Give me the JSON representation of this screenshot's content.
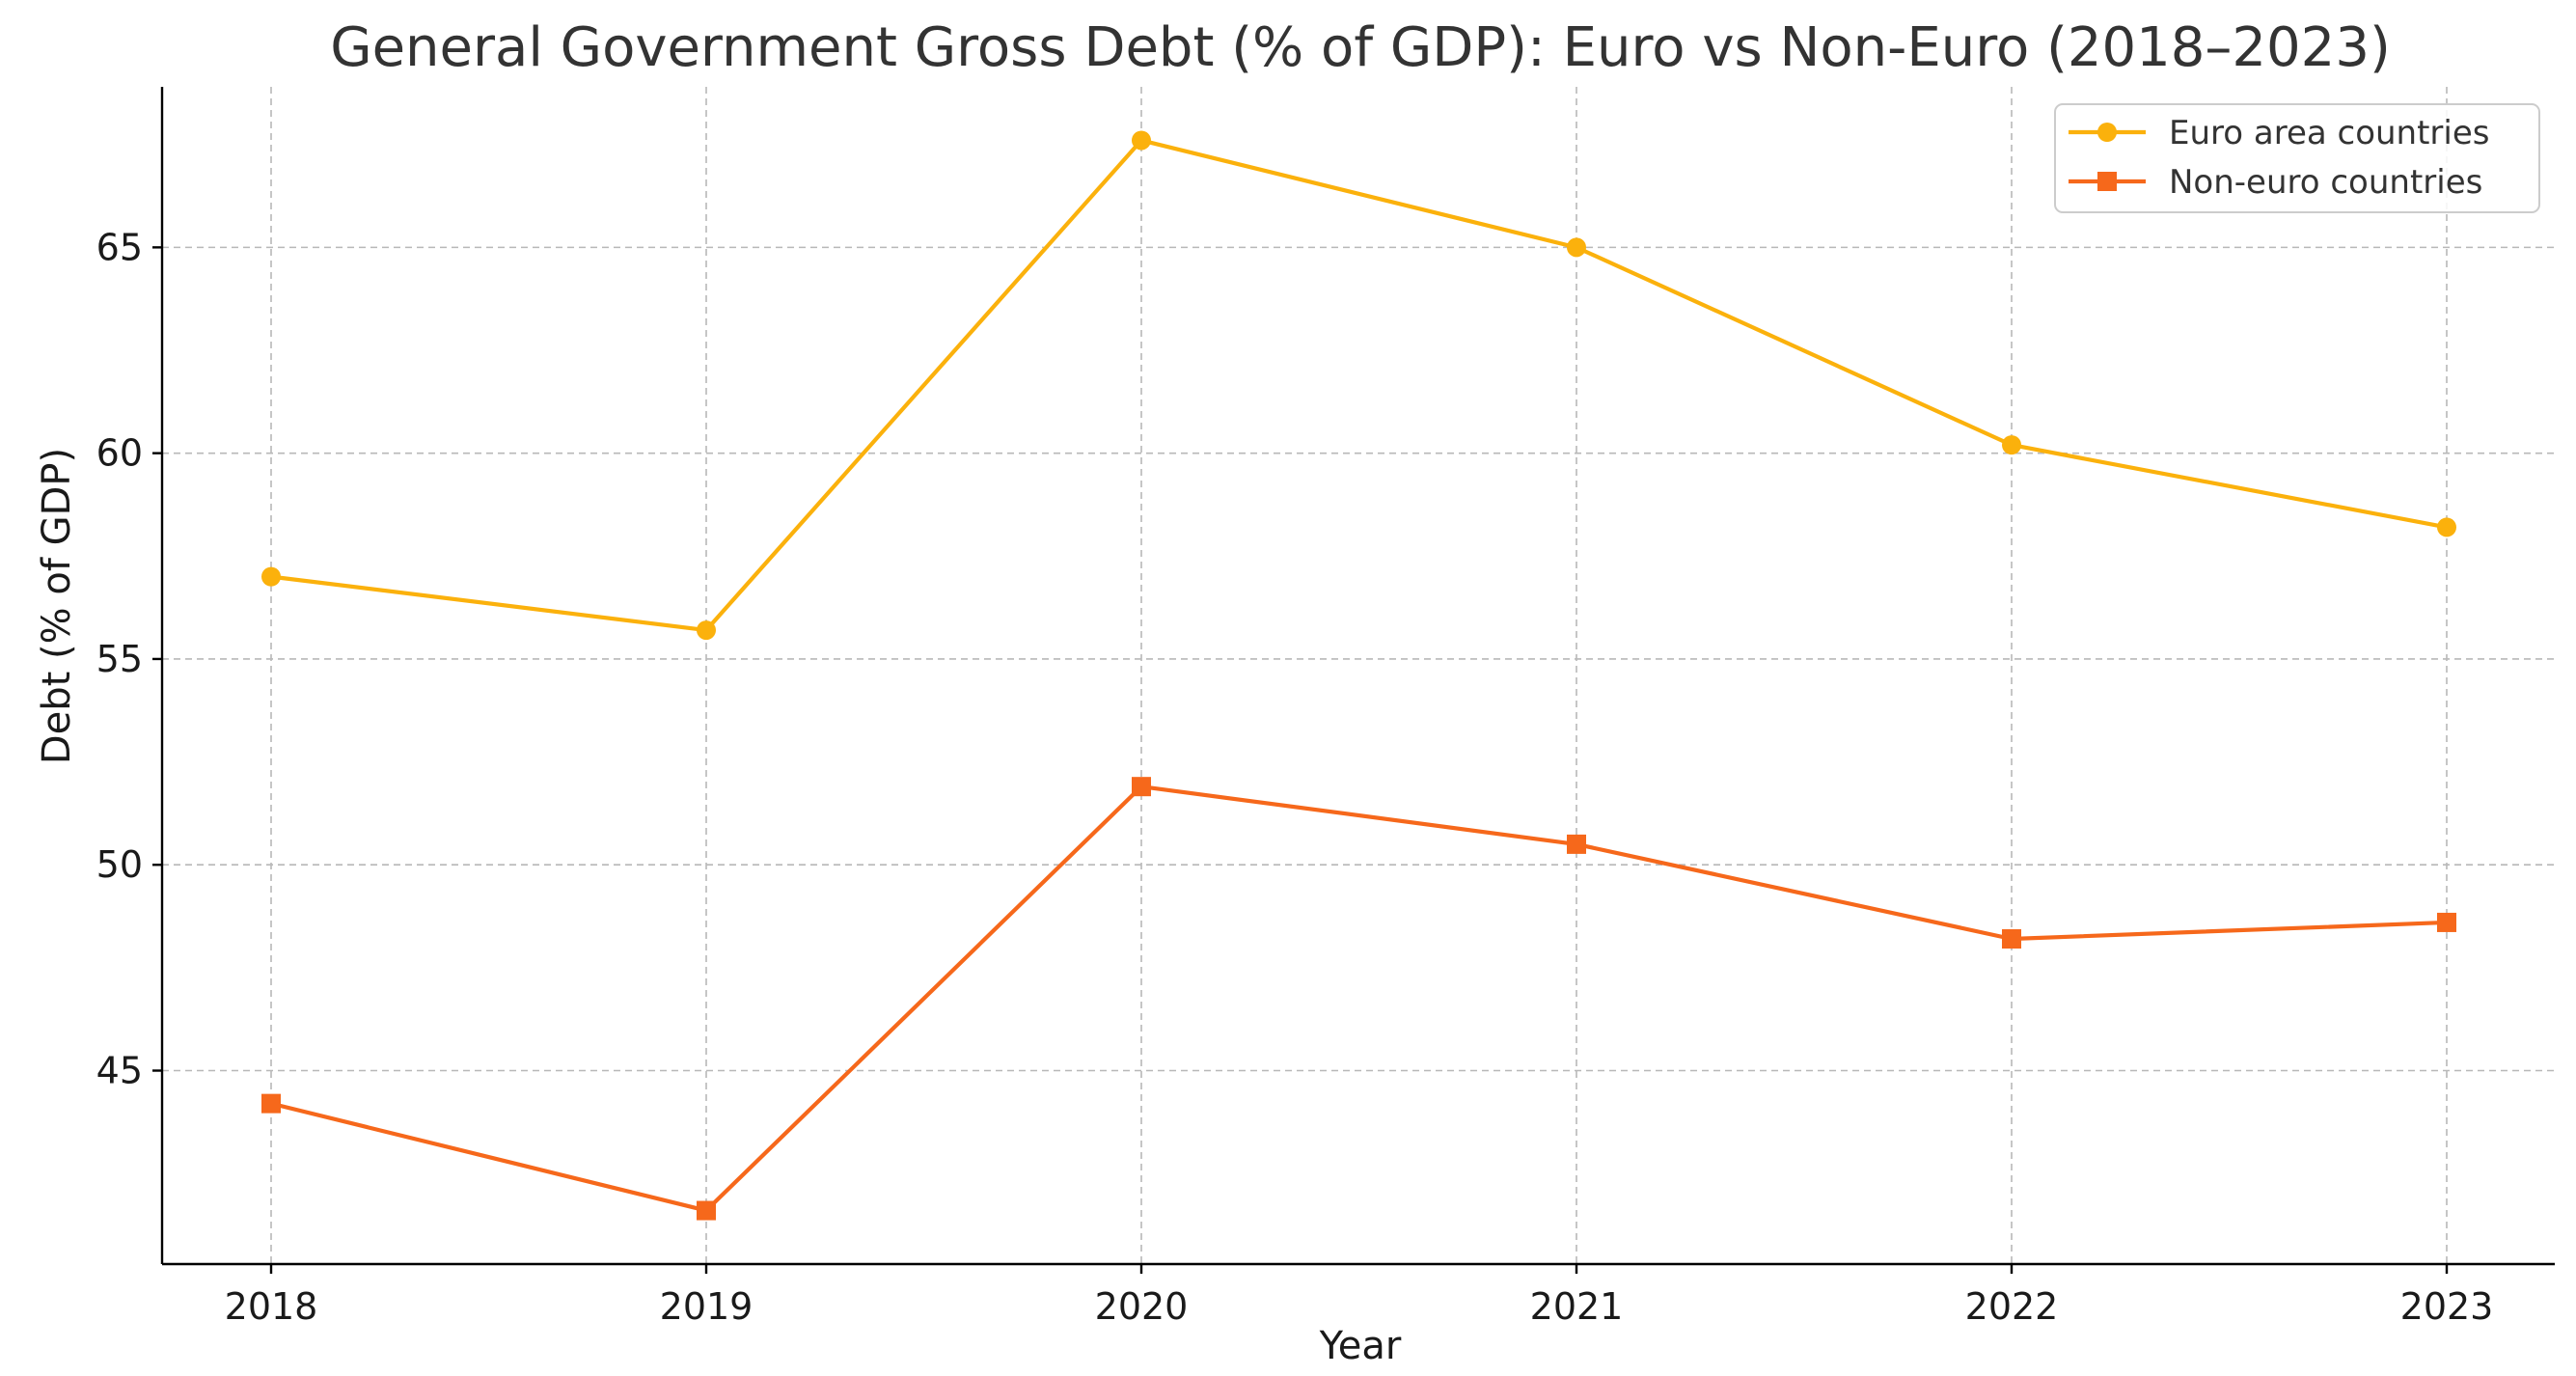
{
  "chart_data": {
    "type": "line",
    "title": "General Government Gross Debt (% of GDP): Euro vs Non-Euro (2018–2023)",
    "xlabel": "Year",
    "ylabel": "Debt (% of GDP)",
    "categories": [
      "2018",
      "2019",
      "2020",
      "2021",
      "2022",
      "2023"
    ],
    "x_tick_labels": [
      "2018",
      "2019",
      "2020",
      "2021",
      "2022",
      "2023"
    ],
    "y_ticks": [
      45,
      50,
      55,
      60,
      65
    ],
    "y_tick_labels": [
      "45",
      "50",
      "55",
      "60",
      "65"
    ],
    "ylim": [
      40.3,
      68.9
    ],
    "grid": true,
    "legend_position": "top-right",
    "series": [
      {
        "name": "Euro area countries",
        "color": "#FBB10C",
        "marker": "circle",
        "values": [
          57.0,
          55.7,
          67.6,
          65.0,
          60.2,
          58.2
        ]
      },
      {
        "name": "Non-euro countries",
        "color": "#F6681B",
        "marker": "square",
        "values": [
          44.2,
          41.6,
          51.9,
          50.5,
          48.2,
          48.6
        ]
      }
    ]
  }
}
